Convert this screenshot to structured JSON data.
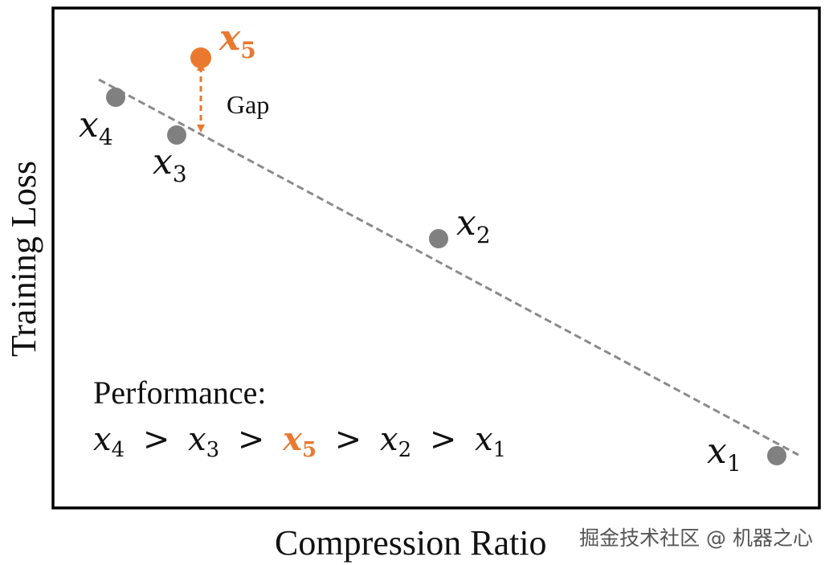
{
  "axes": {
    "xlabel": "Compression Ratio",
    "ylabel": "Training Loss"
  },
  "points": [
    {
      "id": "x1",
      "base": "x",
      "sub": "1"
    },
    {
      "id": "x2",
      "base": "x",
      "sub": "2"
    },
    {
      "id": "x3",
      "base": "x",
      "sub": "3"
    },
    {
      "id": "x4",
      "base": "x",
      "sub": "4"
    },
    {
      "id": "x5",
      "base": "x",
      "sub": "5"
    }
  ],
  "gap_label": "Gap",
  "performance": {
    "title": "Performance:",
    "order": [
      {
        "base": "x",
        "sub": "4"
      },
      {
        "sep": ">"
      },
      {
        "base": "x",
        "sub": "3"
      },
      {
        "sep": ">"
      },
      {
        "base": "x",
        "sub": "5"
      },
      {
        "sep": ">"
      },
      {
        "base": "x",
        "sub": "2"
      },
      {
        "sep": ">"
      },
      {
        "base": "x",
        "sub": "1"
      }
    ]
  },
  "colors": {
    "point": "#808080",
    "highlight": "#E8792F",
    "trend": "#8a8a8a",
    "frame": "#000000"
  },
  "watermark": "掘金技术社区 @ 机器之心"
}
